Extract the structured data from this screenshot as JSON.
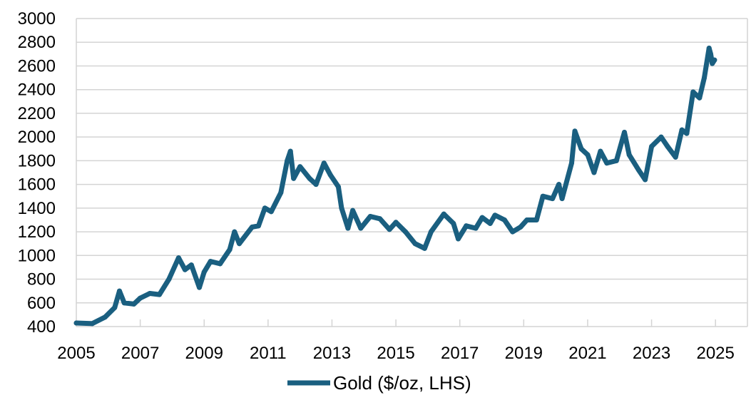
{
  "chart_data": {
    "type": "line",
    "title": "",
    "xlabel": "",
    "ylabel": "",
    "xlim": [
      2005,
      2026
    ],
    "ylim": [
      400,
      3000
    ],
    "yticks": [
      400,
      600,
      800,
      1000,
      1200,
      1400,
      1600,
      1800,
      2000,
      2200,
      2400,
      2600,
      2800,
      3000
    ],
    "xticks": [
      2005,
      2007,
      2009,
      2011,
      2013,
      2015,
      2017,
      2019,
      2021,
      2023,
      2025
    ],
    "grid": "horizontal",
    "legend": {
      "placement": "bottom",
      "entries": [
        "Gold ($/oz, LHS)"
      ]
    },
    "series": [
      {
        "name": "Gold ($/oz, LHS)",
        "color": "#1a5f80",
        "x": [
          2005.0,
          2005.5,
          2005.9,
          2006.2,
          2006.35,
          2006.5,
          2006.8,
          2007.0,
          2007.3,
          2007.6,
          2007.9,
          2008.2,
          2008.4,
          2008.6,
          2008.85,
          2009.0,
          2009.2,
          2009.5,
          2009.8,
          2009.95,
          2010.1,
          2010.5,
          2010.7,
          2010.9,
          2011.1,
          2011.4,
          2011.6,
          2011.7,
          2011.8,
          2012.0,
          2012.3,
          2012.5,
          2012.75,
          2012.95,
          2013.2,
          2013.3,
          2013.5,
          2013.65,
          2013.9,
          2014.2,
          2014.5,
          2014.8,
          2015.0,
          2015.3,
          2015.6,
          2015.9,
          2016.1,
          2016.5,
          2016.8,
          2016.95,
          2017.2,
          2017.5,
          2017.7,
          2017.95,
          2018.1,
          2018.4,
          2018.65,
          2018.9,
          2019.1,
          2019.4,
          2019.6,
          2019.9,
          2020.1,
          2020.2,
          2020.5,
          2020.6,
          2020.8,
          2021.0,
          2021.2,
          2021.4,
          2021.6,
          2021.9,
          2022.15,
          2022.3,
          2022.6,
          2022.8,
          2023.0,
          2023.3,
          2023.5,
          2023.75,
          2023.95,
          2024.1,
          2024.3,
          2024.5,
          2024.65,
          2024.8,
          2024.85,
          2024.9,
          2024.97
        ],
        "values": [
          430,
          425,
          480,
          560,
          700,
          600,
          590,
          640,
          680,
          670,
          800,
          980,
          880,
          920,
          730,
          860,
          950,
          930,
          1050,
          1200,
          1100,
          1240,
          1250,
          1400,
          1370,
          1530,
          1800,
          1880,
          1650,
          1750,
          1650,
          1600,
          1780,
          1680,
          1580,
          1400,
          1230,
          1380,
          1230,
          1330,
          1310,
          1220,
          1280,
          1200,
          1100,
          1060,
          1200,
          1350,
          1270,
          1140,
          1250,
          1230,
          1320,
          1270,
          1340,
          1300,
          1200,
          1240,
          1300,
          1300,
          1500,
          1480,
          1600,
          1480,
          1780,
          2050,
          1900,
          1850,
          1700,
          1880,
          1780,
          1800,
          2040,
          1850,
          1720,
          1640,
          1920,
          2000,
          1920,
          1830,
          2060,
          2030,
          2380,
          2330,
          2500,
          2750,
          2700,
          2620,
          2650
        ]
      }
    ]
  }
}
